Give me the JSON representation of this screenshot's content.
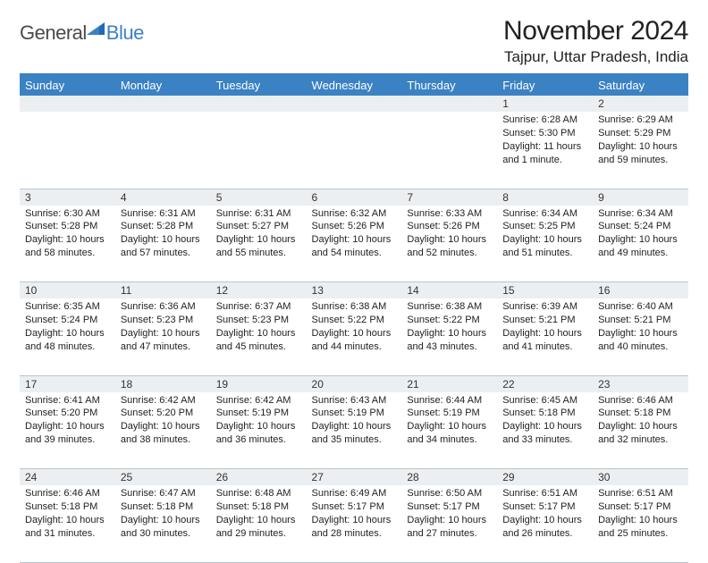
{
  "brand": {
    "general": "General",
    "blue": "Blue",
    "triangle_color": "#3b82c4"
  },
  "title": "November 2024",
  "location": "Tajpur, Uttar Pradesh, India",
  "colors": {
    "header_bg": "#3b82c4",
    "header_fg": "#ffffff",
    "daynum_bg": "#eceff1",
    "rule": "#b8c5d0",
    "text": "#222222"
  },
  "weekdays": [
    "Sunday",
    "Monday",
    "Tuesday",
    "Wednesday",
    "Thursday",
    "Friday",
    "Saturday"
  ],
  "weeks": [
    {
      "nums": [
        "",
        "",
        "",
        "",
        "",
        "1",
        "2"
      ],
      "cells": [
        null,
        null,
        null,
        null,
        null,
        {
          "sunrise": "6:28 AM",
          "sunset": "5:30 PM",
          "daylight": "11 hours and 1 minute."
        },
        {
          "sunrise": "6:29 AM",
          "sunset": "5:29 PM",
          "daylight": "10 hours and 59 minutes."
        }
      ]
    },
    {
      "nums": [
        "3",
        "4",
        "5",
        "6",
        "7",
        "8",
        "9"
      ],
      "cells": [
        {
          "sunrise": "6:30 AM",
          "sunset": "5:28 PM",
          "daylight": "10 hours and 58 minutes."
        },
        {
          "sunrise": "6:31 AM",
          "sunset": "5:28 PM",
          "daylight": "10 hours and 57 minutes."
        },
        {
          "sunrise": "6:31 AM",
          "sunset": "5:27 PM",
          "daylight": "10 hours and 55 minutes."
        },
        {
          "sunrise": "6:32 AM",
          "sunset": "5:26 PM",
          "daylight": "10 hours and 54 minutes."
        },
        {
          "sunrise": "6:33 AM",
          "sunset": "5:26 PM",
          "daylight": "10 hours and 52 minutes."
        },
        {
          "sunrise": "6:34 AM",
          "sunset": "5:25 PM",
          "daylight": "10 hours and 51 minutes."
        },
        {
          "sunrise": "6:34 AM",
          "sunset": "5:24 PM",
          "daylight": "10 hours and 49 minutes."
        }
      ]
    },
    {
      "nums": [
        "10",
        "11",
        "12",
        "13",
        "14",
        "15",
        "16"
      ],
      "cells": [
        {
          "sunrise": "6:35 AM",
          "sunset": "5:24 PM",
          "daylight": "10 hours and 48 minutes."
        },
        {
          "sunrise": "6:36 AM",
          "sunset": "5:23 PM",
          "daylight": "10 hours and 47 minutes."
        },
        {
          "sunrise": "6:37 AM",
          "sunset": "5:23 PM",
          "daylight": "10 hours and 45 minutes."
        },
        {
          "sunrise": "6:38 AM",
          "sunset": "5:22 PM",
          "daylight": "10 hours and 44 minutes."
        },
        {
          "sunrise": "6:38 AM",
          "sunset": "5:22 PM",
          "daylight": "10 hours and 43 minutes."
        },
        {
          "sunrise": "6:39 AM",
          "sunset": "5:21 PM",
          "daylight": "10 hours and 41 minutes."
        },
        {
          "sunrise": "6:40 AM",
          "sunset": "5:21 PM",
          "daylight": "10 hours and 40 minutes."
        }
      ]
    },
    {
      "nums": [
        "17",
        "18",
        "19",
        "20",
        "21",
        "22",
        "23"
      ],
      "cells": [
        {
          "sunrise": "6:41 AM",
          "sunset": "5:20 PM",
          "daylight": "10 hours and 39 minutes."
        },
        {
          "sunrise": "6:42 AM",
          "sunset": "5:20 PM",
          "daylight": "10 hours and 38 minutes."
        },
        {
          "sunrise": "6:42 AM",
          "sunset": "5:19 PM",
          "daylight": "10 hours and 36 minutes."
        },
        {
          "sunrise": "6:43 AM",
          "sunset": "5:19 PM",
          "daylight": "10 hours and 35 minutes."
        },
        {
          "sunrise": "6:44 AM",
          "sunset": "5:19 PM",
          "daylight": "10 hours and 34 minutes."
        },
        {
          "sunrise": "6:45 AM",
          "sunset": "5:18 PM",
          "daylight": "10 hours and 33 minutes."
        },
        {
          "sunrise": "6:46 AM",
          "sunset": "5:18 PM",
          "daylight": "10 hours and 32 minutes."
        }
      ]
    },
    {
      "nums": [
        "24",
        "25",
        "26",
        "27",
        "28",
        "29",
        "30"
      ],
      "cells": [
        {
          "sunrise": "6:46 AM",
          "sunset": "5:18 PM",
          "daylight": "10 hours and 31 minutes."
        },
        {
          "sunrise": "6:47 AM",
          "sunset": "5:18 PM",
          "daylight": "10 hours and 30 minutes."
        },
        {
          "sunrise": "6:48 AM",
          "sunset": "5:18 PM",
          "daylight": "10 hours and 29 minutes."
        },
        {
          "sunrise": "6:49 AM",
          "sunset": "5:17 PM",
          "daylight": "10 hours and 28 minutes."
        },
        {
          "sunrise": "6:50 AM",
          "sunset": "5:17 PM",
          "daylight": "10 hours and 27 minutes."
        },
        {
          "sunrise": "6:51 AM",
          "sunset": "5:17 PM",
          "daylight": "10 hours and 26 minutes."
        },
        {
          "sunrise": "6:51 AM",
          "sunset": "5:17 PM",
          "daylight": "10 hours and 25 minutes."
        }
      ]
    }
  ],
  "labels": {
    "sunrise": "Sunrise:",
    "sunset": "Sunset:",
    "daylight": "Daylight:"
  }
}
